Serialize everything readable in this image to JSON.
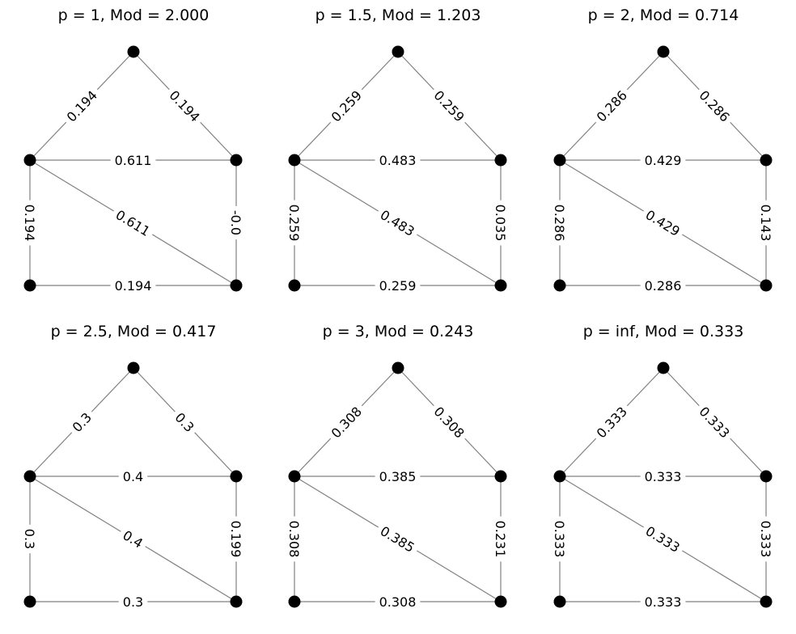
{
  "graph": {
    "nodes": [
      "apex",
      "mid-left",
      "mid-right",
      "bottom-left",
      "bottom-right"
    ],
    "edges": [
      {
        "id": "apex-mid-left",
        "from": "apex",
        "to": "mid-left"
      },
      {
        "id": "apex-mid-right",
        "from": "apex",
        "to": "mid-right"
      },
      {
        "id": "mid-left-mid-right",
        "from": "mid-left",
        "to": "mid-right"
      },
      {
        "id": "mid-left-bottom-left",
        "from": "mid-left",
        "to": "bottom-left"
      },
      {
        "id": "mid-left-bottom-right",
        "from": "mid-left",
        "to": "bottom-right"
      },
      {
        "id": "mid-right-bottom-right",
        "from": "mid-right",
        "to": "bottom-right"
      },
      {
        "id": "bottom-left-bottom-right",
        "from": "bottom-left",
        "to": "bottom-right"
      }
    ]
  },
  "panels": [
    {
      "title": "p = 1, Mod = 2.000",
      "edge_labels": {
        "apex-mid-left": "0.194",
        "apex-mid-right": "0.194",
        "mid-left-mid-right": "0.611",
        "mid-left-bottom-left": "0.194",
        "mid-left-bottom-right": "0.611",
        "mid-right-bottom-right": "-0.0",
        "bottom-left-bottom-right": "0.194"
      }
    },
    {
      "title": "p = 1.5, Mod = 1.203",
      "edge_labels": {
        "apex-mid-left": "0.259",
        "apex-mid-right": "0.259",
        "mid-left-mid-right": "0.483",
        "mid-left-bottom-left": "0.259",
        "mid-left-bottom-right": "0.483",
        "mid-right-bottom-right": "0.035",
        "bottom-left-bottom-right": "0.259"
      }
    },
    {
      "title": "p = 2, Mod = 0.714",
      "edge_labels": {
        "apex-mid-left": "0.286",
        "apex-mid-right": "0.286",
        "mid-left-mid-right": "0.429",
        "mid-left-bottom-left": "0.286",
        "mid-left-bottom-right": "0.429",
        "mid-right-bottom-right": "0.143",
        "bottom-left-bottom-right": "0.286"
      }
    },
    {
      "title": "p = 2.5, Mod = 0.417",
      "edge_labels": {
        "apex-mid-left": "0.3",
        "apex-mid-right": "0.3",
        "mid-left-mid-right": "0.4",
        "mid-left-bottom-left": "0.3",
        "mid-left-bottom-right": "0.4",
        "mid-right-bottom-right": "0.199",
        "bottom-left-bottom-right": "0.3"
      }
    },
    {
      "title": "p = 3, Mod = 0.243",
      "edge_labels": {
        "apex-mid-left": "0.308",
        "apex-mid-right": "0.308",
        "mid-left-mid-right": "0.385",
        "mid-left-bottom-left": "0.308",
        "mid-left-bottom-right": "0.385",
        "mid-right-bottom-right": "0.231",
        "bottom-left-bottom-right": "0.308"
      }
    },
    {
      "title": "p = inf, Mod = 0.333",
      "edge_labels": {
        "apex-mid-left": "0.333",
        "apex-mid-right": "0.333",
        "mid-left-mid-right": "0.333",
        "mid-left-bottom-left": "0.333",
        "mid-left-bottom-right": "0.333",
        "mid-right-bottom-right": "0.333",
        "bottom-left-bottom-right": "0.333"
      }
    }
  ]
}
